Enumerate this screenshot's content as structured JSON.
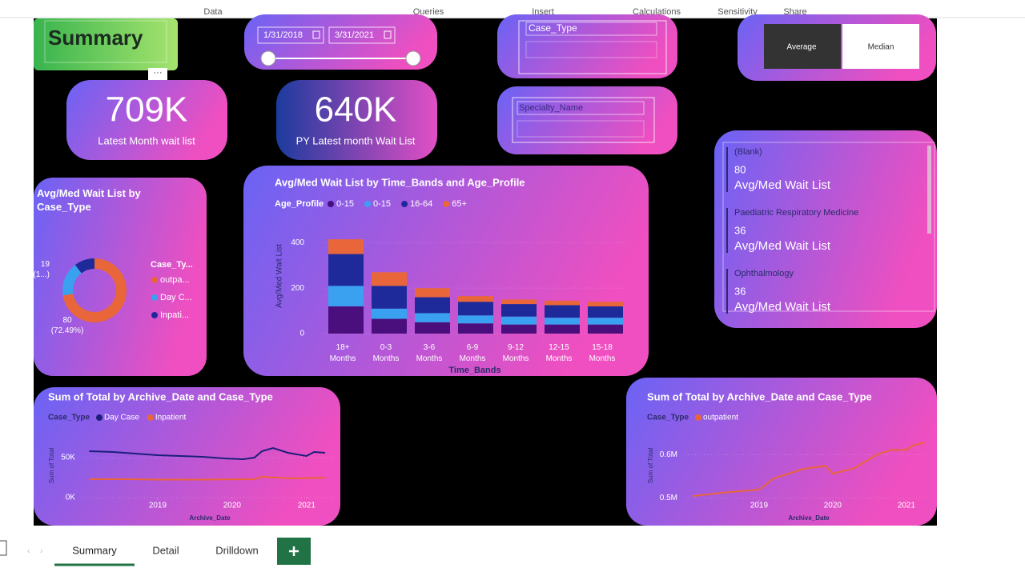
{
  "ribbon": [
    "Data",
    "Queries",
    "Insert",
    "Calculations",
    "Sensitivity",
    "Share"
  ],
  "header": {
    "title": "Summary"
  },
  "date_slicer": {
    "start": "1/31/2018",
    "end": "3/31/2021"
  },
  "slicers": [
    "Case_Type",
    "Specialty_Name"
  ],
  "toggle": [
    "Average",
    "Median"
  ],
  "cards": [
    {
      "value": "709K",
      "label": "Latest Month wait list"
    },
    {
      "value": "640K",
      "label": "PY Latest month Wait List"
    }
  ],
  "list": [
    {
      "name": "(Blank)",
      "value": "80",
      "label": "Avg/Med Wait List"
    },
    {
      "name": "Paediatric Respiratory Medicine",
      "value": "36",
      "label": "Avg/Med Wait List"
    },
    {
      "name": "Ophthalmology",
      "value": "36",
      "label": "Avg/Med Wait List"
    }
  ],
  "tabs": [
    "Summary",
    "Detail",
    "Drilldown"
  ],
  "chart_data": [
    {
      "type": "donut",
      "title": "Avg/Med Wait List by Case_Type",
      "legend_title": "Case_Ty...",
      "categories": [
        "outpa...",
        "Day C...",
        "Inpati..."
      ],
      "values": [
        80,
        19,
        11.4
      ],
      "value_labels": [
        "80 (72.49%)",
        "19 (1...)",
        null
      ],
      "colors": [
        "#e8663a",
        "#3aa0f0",
        "#1f2a9a"
      ]
    },
    {
      "type": "stacked_bar",
      "title": "Avg/Med Wait List by Time_Bands and Age_Profile",
      "legend_title": "Age_Profile",
      "x_label": "Time_Bands",
      "y_label": "Avg/Med Wait List",
      "categories": [
        "18+ Months",
        "0-3 Months",
        "3-6 Months",
        "6-9 Months",
        "9-12 Months",
        "12-15 Months",
        "15-18 Months"
      ],
      "series": [
        {
          "name": "0-15",
          "color": "#4a0f7d",
          "values": [
            120,
            65,
            50,
            45,
            40,
            40,
            40
          ]
        },
        {
          "name": "0-15",
          "color": "#3aa0f0",
          "values": [
            90,
            45,
            40,
            35,
            35,
            30,
            30
          ]
        },
        {
          "name": "16-64",
          "color": "#1f2a9a",
          "values": [
            140,
            100,
            70,
            60,
            55,
            55,
            50
          ]
        },
        {
          "name": "65+",
          "color": "#e8663a",
          "values": [
            65,
            60,
            40,
            25,
            20,
            20,
            20
          ]
        }
      ],
      "ylim": [
        0,
        440
      ],
      "yticks": [
        0,
        200,
        400
      ],
      "grid": true
    },
    {
      "type": "line",
      "title": "Sum of Total by Archive_Date and Case_Type",
      "legend_title": "Case_Type",
      "x_label": "Archive_Date",
      "y_label": "Sum of Total",
      "series": [
        {
          "name": "Day Case",
          "color": "#1a1f7a",
          "x": [
            2018.08,
            2018.4,
            2018.7,
            2019.0,
            2019.3,
            2019.6,
            2019.9,
            2020.15,
            2020.3,
            2020.4,
            2020.55,
            2020.75,
            2021.0,
            2021.1,
            2021.25
          ],
          "values": [
            58000,
            57000,
            55000,
            53000,
            52000,
            51000,
            49000,
            48000,
            50000,
            58000,
            62000,
            56000,
            52000,
            57000,
            56000
          ]
        },
        {
          "name": "Inpatient",
          "color": "#e8663a",
          "x": [
            2018.08,
            2018.6,
            2019.0,
            2019.6,
            2020.3,
            2020.4,
            2020.8,
            2021.25
          ],
          "values": [
            23000,
            23000,
            22500,
            22500,
            23000,
            26000,
            24000,
            25000
          ]
        }
      ],
      "xlim": [
        2018,
        2021.4
      ],
      "xticks": [
        2019,
        2020,
        2021
      ],
      "ylim": [
        0,
        75000
      ],
      "yticks": [
        {
          "value": 0,
          "label": "0K"
        },
        {
          "value": 50000,
          "label": "50K"
        }
      ],
      "grid": true
    },
    {
      "type": "line",
      "title": "Sum of Total by Archive_Date and Case_Type",
      "legend_title": "Case_Type",
      "x_label": "Archive_Date",
      "y_label": "Sum of Total",
      "series": [
        {
          "name": "outpatient",
          "color": "#e8663a",
          "x": [
            2018.1,
            2018.5,
            2019.0,
            2019.2,
            2019.6,
            2019.9,
            2020.0,
            2020.3,
            2020.6,
            2020.8,
            2021.0,
            2021.1,
            2021.25
          ],
          "values": [
            504000,
            512000,
            519000,
            545000,
            567000,
            574000,
            556000,
            569000,
            600000,
            611000,
            611000,
            622000,
            628000
          ]
        }
      ],
      "xlim": [
        2018,
        2021.35
      ],
      "xticks": [
        2019,
        2020,
        2021
      ],
      "ylim": [
        495000,
        645000
      ],
      "yticks": [
        {
          "value": 500000,
          "label": "0.5M"
        },
        {
          "value": 600000,
          "label": "0.6M"
        }
      ],
      "grid": true
    }
  ]
}
